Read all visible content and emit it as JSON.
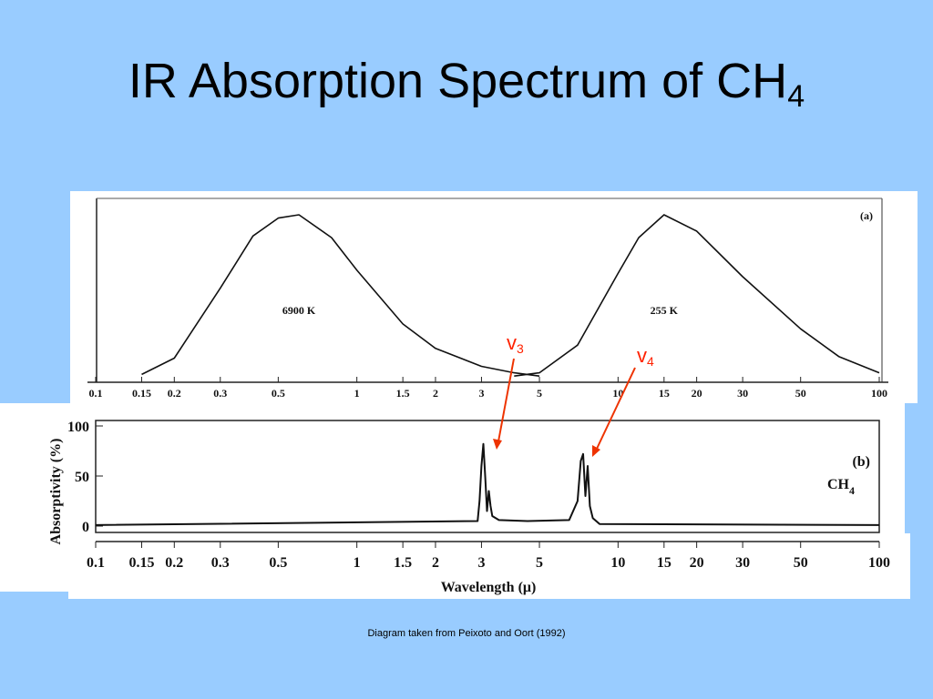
{
  "slide": {
    "title_main": "IR Absorption Spectrum of CH",
    "title_sub": "4",
    "caption": "Diagram taken from Peixoto and Oort (1992)"
  },
  "annotations": [
    {
      "symbol": "v",
      "sub": "3",
      "color": "#ff2200"
    },
    {
      "symbol": "v",
      "sub": "4",
      "color": "#ff2200"
    }
  ],
  "chart_data": [
    {
      "type": "line",
      "panel_label": "(a)",
      "x_scale": "log",
      "xlim": [
        0.1,
        100
      ],
      "x_ticks": [
        "0.1",
        "0.15",
        "0.2",
        "0.3",
        "0.5",
        "1",
        "1.5",
        "2",
        "3",
        "5",
        "10",
        "15",
        "20",
        "30",
        "50",
        "100"
      ],
      "series": [
        {
          "name": "6900 K",
          "x": [
            0.15,
            0.2,
            0.3,
            0.4,
            0.5,
            0.6,
            0.8,
            1.0,
            1.5,
            2.0,
            3.0,
            4.0,
            5.0
          ],
          "y": [
            0.02,
            0.12,
            0.55,
            0.87,
            0.98,
            1.0,
            0.86,
            0.66,
            0.33,
            0.18,
            0.07,
            0.03,
            0.01
          ]
        },
        {
          "name": "255 K",
          "x": [
            4.0,
            5.0,
            7.0,
            10.0,
            12.0,
            15.0,
            20.0,
            30.0,
            50.0,
            70.0,
            100.0
          ],
          "y": [
            0.01,
            0.03,
            0.2,
            0.64,
            0.86,
            1.0,
            0.9,
            0.62,
            0.3,
            0.13,
            0.03
          ]
        }
      ]
    },
    {
      "type": "line",
      "panel_label": "(b)",
      "species": "CH",
      "species_sub": "4",
      "x_scale": "log",
      "xlim": [
        0.1,
        100
      ],
      "ylim": [
        0,
        100
      ],
      "y_ticks": [
        "100",
        "50",
        "0"
      ],
      "x_ticks": [
        "0.1",
        "0.15",
        "0.2",
        "0.3",
        "0.5",
        "1",
        "1.5",
        "2",
        "3",
        "5",
        "10",
        "15",
        "20",
        "30",
        "50",
        "100"
      ],
      "xlabel": "Wavelength (μ)",
      "ylabel": "Absorptivity (%)",
      "series": [
        {
          "x": [
            0.1,
            2.9,
            2.95,
            3.0,
            3.05,
            3.1,
            3.15,
            3.2,
            3.25,
            3.3,
            3.5,
            4.5,
            6.5,
            7.0,
            7.2,
            7.35,
            7.5,
            7.65,
            7.8,
            8.0,
            8.5,
            100
          ],
          "y": [
            1,
            5,
            25,
            60,
            82,
            50,
            15,
            35,
            20,
            10,
            6,
            5,
            6,
            25,
            65,
            72,
            30,
            60,
            20,
            8,
            2,
            1
          ]
        }
      ]
    }
  ]
}
